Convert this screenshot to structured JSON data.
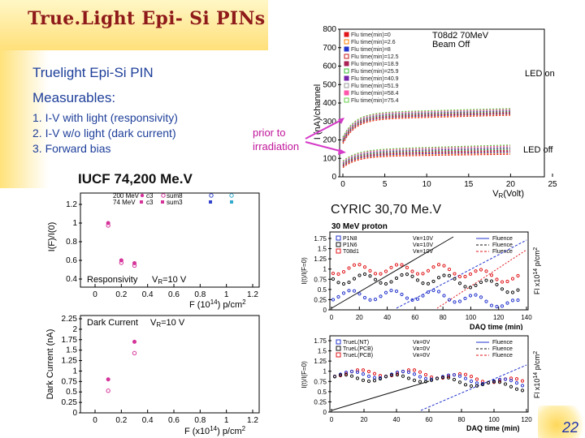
{
  "slide": {
    "title": "True.Light Epi- Si PINs",
    "subheading": "Truelight  Epi-Si PIN",
    "measurables_heading": "Measurables:",
    "measurables": [
      "1.  I-V with light (responsivity)",
      "2.  I-V w/o  light (dark current)",
      "3.  Forward bias"
    ],
    "prior_note": [
      "prior to",
      "irradiation"
    ],
    "iucf_label": "IUCF 74,200 Me.V",
    "cyric_label": "CYRIC 30,70 Me.V",
    "page_number": "22"
  },
  "colors": {
    "title": "#8e1a1a",
    "body_text": "#1e3f9a",
    "accent": "#c0159a"
  },
  "plot_iv": {
    "header": "T08d2 70MeV",
    "beam": "Beam Off",
    "y_label": "I (nA)/channel",
    "x_label": "V",
    "x_label_sub": "R",
    "x_label_tail": "(Volt)",
    "led_on": "LED on",
    "led_off": "LED off",
    "y_ticks": [
      "800",
      "700",
      "600",
      "500",
      "400",
      "300",
      "200",
      "100",
      "0"
    ],
    "x_ticks": [
      "0",
      "5",
      "10",
      "15",
      "20",
      "25"
    ],
    "legend": [
      "Flu time(min)=0",
      "Flu time(min)=2.6",
      "Flu time(min)=8",
      "Flu time(min)=12.5",
      "Flu time(min)=18.9",
      "Flu time(min)=25.9",
      "Flu time(min)=40.9",
      "Flu time(min)=51.9",
      "Flu time(min)=58.4",
      "Flu time(min)=75.4"
    ]
  },
  "plot_resp": {
    "y_label": "I(F)/I(0)",
    "x_label": "F (10",
    "x_label_sup": "14",
    "x_label_tail": ") p/cm",
    "x_label_sup2": "2",
    "annotation": "Responsivity",
    "vr": "V",
    "vr_sub": "R",
    "vr_tail": "=10 V",
    "legend_row1": [
      "200 MeV",
      "c3",
      "sum8"
    ],
    "legend_row2": [
      "74 MeV",
      "c3",
      "sum3"
    ],
    "y_ticks": [
      "1.2",
      "1",
      "0.8",
      "0.6",
      "0.4"
    ],
    "x_ticks": [
      "0",
      "0.2",
      "0.4",
      "0.6",
      "0.8",
      "1",
      "1.2"
    ]
  },
  "plot_dark": {
    "y_label": "Dark Current (nA)",
    "x_label": "F (x10",
    "x_label_sup": "14",
    "x_label_tail": ") p/cm",
    "x_label_sup2": "2",
    "annotation": "Dark Current",
    "vr": "V",
    "vr_sub": "R",
    "vr_tail": "=10 V",
    "y_ticks": [
      "2.25",
      "2",
      "1.75",
      "1.5",
      "1.25",
      "1",
      "0.75",
      "0.5",
      "0.25",
      "0"
    ],
    "x_ticks": [
      "0",
      "0.2",
      "0.4",
      "0.6",
      "0.8",
      "1",
      "1.2"
    ]
  },
  "plot_cyric_top": {
    "title": "30 MeV proton",
    "y_label": "I(t)/I(F=0)",
    "y2_label": "Fl x10",
    "y2_sup": "14",
    "y2_tail": " p/cm",
    "y2_sup2": "2",
    "x_label": "DAQ time (min)",
    "legend_left": [
      "P1N8",
      "P1N6",
      "T08d1"
    ],
    "legend_mid": [
      "Vʀ=10V",
      "Vʀ=10V",
      "Vʀ=10V"
    ],
    "legend_right": [
      "Fluence",
      "Fluence",
      "Fluence"
    ],
    "y_ticks": [
      "1.75",
      "1.5",
      "1.25",
      "1",
      "0.75",
      "0.5",
      "0.25",
      "0"
    ],
    "x_ticks": [
      "0",
      "20",
      "40",
      "60",
      "80",
      "100",
      "120",
      "140"
    ]
  },
  "plot_cyric_bot": {
    "y_label": "I(t)/I(F=0)",
    "y2_label": "Fl x10",
    "y2_sup": "14",
    "y2_tail": " p/cm",
    "y2_sup2": "2",
    "x_label": "DAQ time (min)",
    "legend_left": [
      "TrueL(NT)",
      "TrueL(PCB)",
      "TrueL(PCB)"
    ],
    "legend_mid": [
      "Vʀ=0V",
      "Vʀ=0V",
      "Vʀ=0V"
    ],
    "legend_right": [
      "Fluence",
      "Fluence",
      "Fluence"
    ],
    "y_ticks": [
      "1.75",
      "1.5",
      "1.25",
      "1",
      "0.75",
      "0.5",
      "0.25",
      "0"
    ],
    "x_ticks": [
      "0",
      "20",
      "40",
      "60",
      "80",
      "100",
      "120"
    ]
  }
}
